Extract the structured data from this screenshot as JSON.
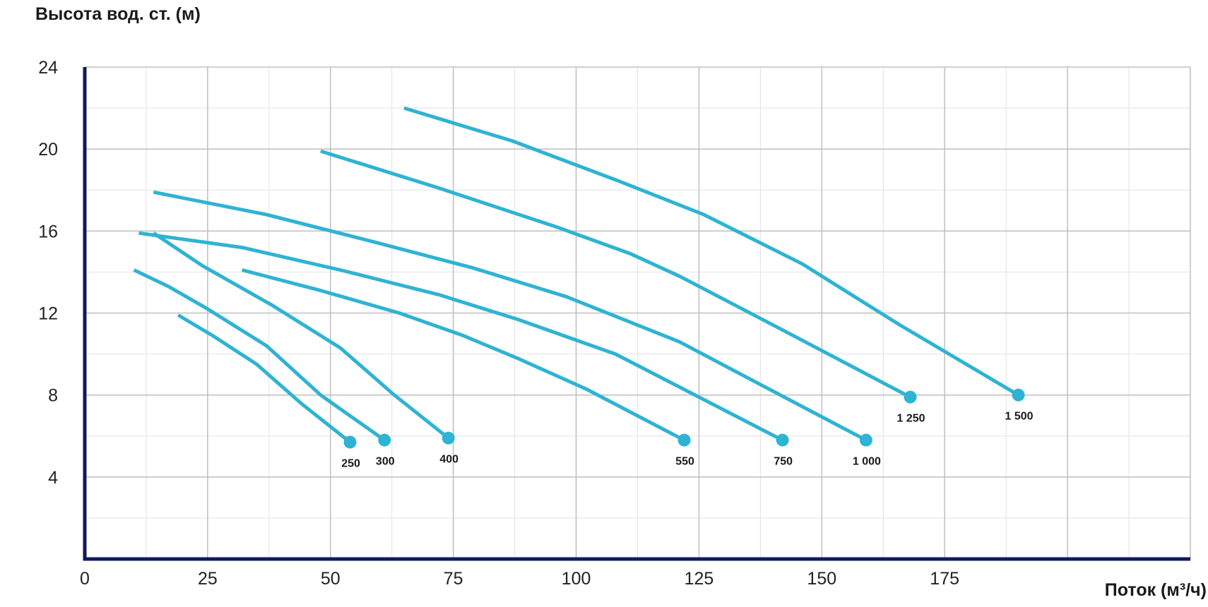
{
  "chart_data": {
    "type": "line",
    "title": "",
    "xlabel": "Поток (м³/ч)",
    "ylabel": "Высота вод. ст. (м)",
    "xlim": [
      0,
      225
    ],
    "ylim": [
      0,
      24
    ],
    "x_ticks": [
      0,
      25,
      50,
      75,
      100,
      125,
      150,
      175
    ],
    "x_tick_labels": [
      "0",
      "25",
      "50",
      "75",
      "100",
      "125",
      "150",
      "175"
    ],
    "y_ticks": [
      4,
      8,
      12,
      16,
      20,
      24
    ],
    "y_tick_labels": [
      "4",
      "8",
      "12",
      "16",
      "20",
      "24"
    ],
    "grid": true,
    "legend": "none",
    "colors": {
      "series": "#2fb3d3",
      "axis": "#0d1a5c",
      "grid_major": "#c2c2c2",
      "grid_minor": "#e2e2e2"
    },
    "series": [
      {
        "name": "250",
        "x": [
          19,
          26,
          35,
          44,
          54
        ],
        "y": [
          11.9,
          10.9,
          9.5,
          7.6,
          5.7
        ]
      },
      {
        "name": "300",
        "x": [
          10,
          17,
          25,
          37,
          48,
          61
        ],
        "y": [
          14.1,
          13.3,
          12.2,
          10.4,
          8.0,
          5.8
        ]
      },
      {
        "name": "400",
        "x": [
          14,
          24,
          38,
          52,
          63,
          74
        ],
        "y": [
          15.9,
          14.3,
          12.4,
          10.3,
          8.0,
          5.9
        ]
      },
      {
        "name": "550",
        "x": [
          32,
          48,
          64,
          77,
          88,
          102,
          122
        ],
        "y": [
          14.1,
          13.1,
          12.0,
          10.9,
          9.8,
          8.3,
          5.8
        ]
      },
      {
        "name": "750",
        "x": [
          11,
          32,
          52,
          72,
          88,
          108,
          142
        ],
        "y": [
          15.9,
          15.2,
          14.1,
          12.9,
          11.7,
          10.0,
          5.8
        ]
      },
      {
        "name": "1 000",
        "x": [
          14,
          37,
          60,
          79,
          98,
          121,
          159
        ],
        "y": [
          17.9,
          16.8,
          15.4,
          14.2,
          12.8,
          10.6,
          5.8
        ]
      },
      {
        "name": "1 250",
        "x": [
          48,
          72,
          96,
          111,
          121,
          141,
          168
        ],
        "y": [
          19.9,
          18.1,
          16.2,
          14.9,
          13.8,
          11.3,
          7.9
        ]
      },
      {
        "name": "1 500",
        "x": [
          65,
          87,
          108,
          126,
          146,
          166,
          190
        ],
        "y": [
          22.0,
          20.4,
          18.5,
          16.8,
          14.4,
          11.4,
          8.0
        ]
      }
    ],
    "endpoint_labels": [
      "250",
      "300",
      "400",
      "550",
      "750",
      "1 000",
      "1 250",
      "1 500"
    ]
  }
}
